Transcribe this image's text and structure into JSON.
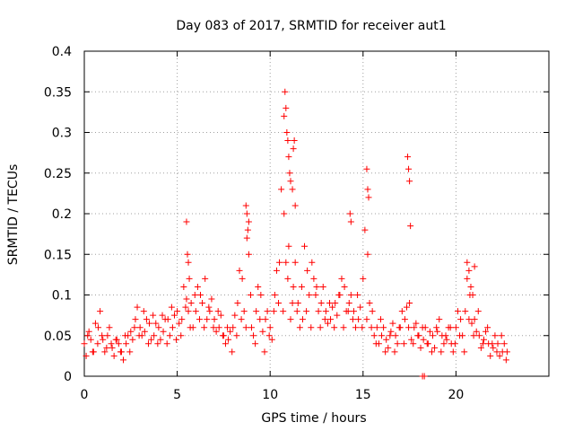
{
  "chart_data": {
    "type": "scatter",
    "title": "Day 083 of 2017, SRMTID for receiver aut1",
    "xlabel": "GPS time / hours",
    "ylabel": "SRMTID / TECUs",
    "xlim": [
      0,
      25
    ],
    "ylim": [
      0,
      0.4
    ],
    "x_ticks": [
      0,
      5,
      10,
      15,
      20
    ],
    "y_ticks": [
      0,
      0.05,
      0.1,
      0.15,
      0.2,
      0.25,
      0.3,
      0.35,
      0.4
    ],
    "x_tick_labels": [
      "0",
      "5",
      "10",
      "15",
      "20"
    ],
    "y_tick_labels": [
      "0",
      "0.05",
      "0.1",
      "0.15",
      "0.2",
      "0.25",
      "0.3",
      "0.35",
      "0.4"
    ],
    "grid": true,
    "marker": "+",
    "color": "#ff0000",
    "series": [
      {
        "name": "SRMTID aut1",
        "x": [
          0.0,
          0.25,
          0.5,
          0.75,
          1.0,
          1.25,
          1.5,
          1.75,
          2.0,
          2.25,
          2.5,
          2.75,
          3.0,
          3.25,
          3.5,
          3.75,
          4.0,
          4.25,
          4.5,
          4.75,
          5.0,
          5.25,
          5.5,
          5.75,
          6.0,
          6.25,
          6.5,
          6.75,
          7.0,
          7.25,
          7.5,
          7.75,
          8.0,
          8.25,
          8.5,
          8.75,
          9.0,
          9.25,
          9.5,
          9.75,
          10.0,
          10.25,
          10.5,
          10.75,
          11.0,
          11.25,
          11.5,
          11.75,
          12.0,
          12.25,
          12.5,
          12.75,
          13.0,
          13.25,
          13.5,
          13.75,
          14.0,
          14.25,
          14.5,
          14.75,
          15.0,
          15.25,
          15.5,
          15.75,
          16.0,
          16.25,
          16.5,
          16.75,
          17.0,
          17.25,
          17.5,
          17.75,
          18.0,
          18.25,
          18.5,
          18.75,
          19.0,
          19.25,
          19.5,
          19.75,
          20.0,
          20.25,
          20.5,
          20.75,
          21.0,
          21.25,
          21.5,
          21.75,
          22.0,
          22.25,
          22.5,
          22.75,
          0.1,
          0.35,
          0.6,
          0.85,
          1.1,
          1.35,
          1.6,
          1.85,
          2.1,
          2.35,
          2.6,
          2.85,
          3.1,
          3.35,
          3.6,
          3.85,
          4.1,
          4.35,
          4.6,
          4.85,
          5.1,
          5.35,
          5.6,
          5.85,
          6.1,
          6.35,
          6.6,
          6.85,
          7.1,
          7.35,
          7.6,
          7.85,
          8.1,
          8.35,
          8.6,
          8.85,
          9.1,
          9.35,
          9.6,
          9.85,
          10.1,
          10.35,
          10.6,
          10.85,
          11.1,
          11.35,
          11.6,
          11.85,
          12.1,
          12.35,
          12.6,
          12.85,
          13.1,
          13.35,
          13.6,
          13.85,
          14.1,
          14.35,
          14.6,
          14.85,
          15.1,
          15.35,
          15.6,
          15.85,
          16.1,
          16.35,
          16.6,
          16.85,
          17.1,
          17.35,
          17.6,
          17.85,
          18.1,
          18.35,
          18.6,
          18.85,
          19.1,
          19.35,
          19.6,
          19.85,
          20.1,
          20.35,
          20.6,
          20.85,
          21.1,
          21.35,
          21.6,
          21.85,
          22.1,
          22.35,
          22.6,
          0.18,
          0.45,
          0.72,
          0.95,
          1.2,
          1.45,
          1.7,
          1.95,
          2.2,
          2.45,
          2.7,
          2.95,
          3.2,
          3.45,
          3.7,
          3.95,
          4.2,
          4.45,
          4.7,
          4.95,
          5.2,
          5.45,
          5.7,
          5.95,
          6.2,
          6.45,
          6.7,
          6.95,
          7.2,
          7.45,
          7.7,
          7.95,
          8.2,
          8.45,
          8.7,
          8.95,
          9.2,
          9.45,
          9.7,
          9.95,
          10.2,
          10.45,
          10.7,
          10.95,
          11.2,
          11.45,
          11.7,
          11.95,
          12.2,
          12.45,
          12.7,
          12.95,
          13.2,
          13.45,
          13.7,
          13.95,
          14.2,
          14.45,
          14.7,
          14.95,
          15.2,
          15.45,
          15.7,
          15.95,
          16.2,
          16.45,
          16.7,
          16.95,
          17.2,
          17.45,
          17.7,
          17.95,
          18.2,
          18.45,
          18.7,
          18.95,
          19.2,
          19.45,
          19.7,
          19.95,
          20.2,
          20.45,
          20.7,
          20.95,
          21.2,
          21.45,
          21.7,
          21.95,
          22.2,
          22.45,
          22.7,
          5.5,
          5.55,
          5.6,
          5.65,
          8.7,
          8.75,
          8.8,
          8.85,
          10.75,
          10.8,
          10.85,
          10.9,
          10.95,
          11.0,
          11.05,
          11.1,
          11.2,
          11.25,
          11.3,
          11.35,
          14.3,
          14.35,
          15.2,
          15.25,
          15.3,
          17.4,
          17.45,
          17.5,
          17.55,
          18.2,
          18.3,
          20.6,
          20.7,
          20.8,
          20.9,
          21.0
        ],
        "y": [
          0.04,
          0.055,
          0.03,
          0.06,
          0.045,
          0.05,
          0.035,
          0.045,
          0.03,
          0.04,
          0.055,
          0.07,
          0.06,
          0.055,
          0.065,
          0.05,
          0.06,
          0.055,
          0.07,
          0.06,
          0.08,
          0.07,
          0.095,
          0.09,
          0.08,
          0.1,
          0.12,
          0.08,
          0.07,
          0.06,
          0.05,
          0.045,
          0.06,
          0.09,
          0.12,
          0.17,
          0.06,
          0.08,
          0.1,
          0.07,
          0.06,
          0.1,
          0.14,
          0.2,
          0.16,
          0.11,
          0.09,
          0.07,
          0.13,
          0.14,
          0.11,
          0.09,
          0.08,
          0.07,
          0.09,
          0.1,
          0.11,
          0.09,
          0.08,
          0.07,
          0.12,
          0.15,
          0.08,
          0.06,
          0.05,
          0.045,
          0.055,
          0.05,
          0.06,
          0.07,
          0.09,
          0.06,
          0.05,
          0.045,
          0.04,
          0.05,
          0.055,
          0.05,
          0.045,
          0.04,
          0.06,
          0.07,
          0.08,
          0.1,
          0.07,
          0.05,
          0.045,
          0.04,
          0.035,
          0.04,
          0.03,
          0.03,
          0.025,
          0.045,
          0.065,
          0.08,
          0.03,
          0.06,
          0.025,
          0.04,
          0.02,
          0.05,
          0.045,
          0.085,
          0.05,
          0.07,
          0.045,
          0.065,
          0.045,
          0.07,
          0.05,
          0.075,
          0.065,
          0.11,
          0.08,
          0.06,
          0.11,
          0.09,
          0.07,
          0.095,
          0.055,
          0.075,
          0.04,
          0.055,
          0.075,
          0.13,
          0.08,
          0.15,
          0.05,
          0.11,
          0.055,
          0.08,
          0.045,
          0.13,
          0.23,
          0.14,
          0.07,
          0.14,
          0.06,
          0.16,
          0.1,
          0.12,
          0.08,
          0.11,
          0.065,
          0.085,
          0.075,
          0.12,
          0.08,
          0.1,
          0.06,
          0.085,
          0.18,
          0.09,
          0.05,
          0.04,
          0.06,
          0.035,
          0.065,
          0.04,
          0.08,
          0.085,
          0.045,
          0.065,
          0.035,
          0.06,
          0.055,
          0.035,
          0.07,
          0.04,
          0.06,
          0.03,
          0.08,
          0.05,
          0.12,
          0.065,
          0.055,
          0.035,
          0.055,
          0.025,
          0.05,
          0.025,
          0.04,
          0.05,
          0.03,
          0.04,
          0.05,
          0.035,
          0.04,
          0.045,
          0.03,
          0.05,
          0.03,
          0.06,
          0.05,
          0.08,
          0.04,
          0.075,
          0.04,
          0.075,
          0.04,
          0.085,
          0.045,
          0.05,
          0.085,
          0.06,
          0.1,
          0.07,
          0.06,
          0.085,
          0.06,
          0.08,
          0.05,
          0.06,
          0.03,
          0.05,
          0.07,
          0.06,
          0.1,
          0.04,
          0.07,
          0.03,
          0.05,
          0.08,
          0.09,
          0.08,
          0.12,
          0.09,
          0.08,
          0.11,
          0.08,
          0.06,
          0.1,
          0.06,
          0.07,
          0.09,
          0.06,
          0.1,
          0.06,
          0.08,
          0.07,
          0.1,
          0.06,
          0.07,
          0.06,
          0.04,
          0.07,
          0.03,
          0.05,
          0.03,
          0.06,
          0.04,
          0.06,
          0.04,
          0.05,
          0.06,
          0.04,
          0.03,
          0.06,
          0.03,
          0.05,
          0.06,
          0.04,
          0.05,
          0.03,
          0.07,
          0.05,
          0.08,
          0.04,
          0.06,
          0.04,
          0.03,
          0.05,
          0.02,
          0.19,
          0.15,
          0.14,
          0.12,
          0.21,
          0.2,
          0.18,
          0.19,
          0.32,
          0.35,
          0.33,
          0.3,
          0.29,
          0.27,
          0.25,
          0.24,
          0.23,
          0.28,
          0.29,
          0.21,
          0.2,
          0.19,
          0.255,
          0.23,
          0.22,
          0.27,
          0.255,
          0.24,
          0.185,
          0.0,
          0.0,
          0.14,
          0.13,
          0.11,
          0.1,
          0.135
        ]
      }
    ]
  }
}
